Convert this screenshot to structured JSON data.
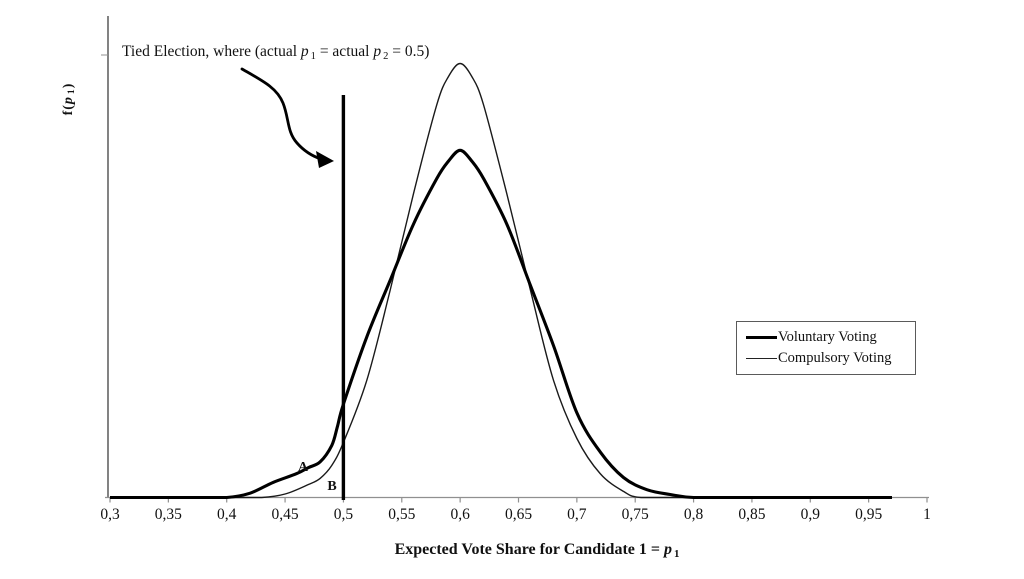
{
  "chart_data": {
    "type": "line",
    "title": "",
    "xlabel_parts": {
      "main": "Expected Vote Share for Candidate 1 = ",
      "p": "p",
      "sub": "1"
    },
    "ylabel_parts": {
      "f": "f(",
      "p": "p",
      "sub": "1",
      "close": ")"
    },
    "x_axis": {
      "min": 0.3,
      "max": 1.0,
      "decimal_separator": ",",
      "ticks": [
        {
          "label": "0,3",
          "value": 0.3
        },
        {
          "label": "0,35",
          "value": 0.35
        },
        {
          "label": "0,4",
          "value": 0.4
        },
        {
          "label": "0,45",
          "value": 0.45
        },
        {
          "label": "0,5",
          "value": 0.5
        },
        {
          "label": "0,55",
          "value": 0.55
        },
        {
          "label": "0,6",
          "value": 0.6
        },
        {
          "label": "0,65",
          "value": 0.65
        },
        {
          "label": "0,7",
          "value": 0.7
        },
        {
          "label": "0,75",
          "value": 0.75
        },
        {
          "label": "0,8",
          "value": 0.8
        },
        {
          "label": "0,85",
          "value": 0.85
        },
        {
          "label": "0,9",
          "value": 0.9
        },
        {
          "label": "0,95",
          "value": 0.95
        },
        {
          "label": "1",
          "value": 1.0
        }
      ]
    },
    "y_axis": {
      "scale_visible": false,
      "range_relative": [
        0,
        1
      ]
    },
    "series": [
      {
        "name": "Voluntary Voting",
        "line": "thick",
        "peak": {
          "x": 0.6,
          "height": 0.8
        },
        "points": [
          [
            0.3,
            0
          ],
          [
            0.34,
            0
          ],
          [
            0.37,
            0
          ],
          [
            0.4,
            0
          ],
          [
            0.42,
            0.01
          ],
          [
            0.44,
            0.035
          ],
          [
            0.46,
            0.055
          ],
          [
            0.47,
            0.069
          ],
          [
            0.48,
            0.082
          ],
          [
            0.49,
            0.12
          ],
          [
            0.495,
            0.165
          ],
          [
            0.5,
            0.215
          ],
          [
            0.52,
            0.37
          ],
          [
            0.54,
            0.5
          ],
          [
            0.56,
            0.63
          ],
          [
            0.58,
            0.735
          ],
          [
            0.59,
            0.775
          ],
          [
            0.6,
            0.8
          ],
          [
            0.61,
            0.775
          ],
          [
            0.62,
            0.735
          ],
          [
            0.64,
            0.63
          ],
          [
            0.66,
            0.49
          ],
          [
            0.68,
            0.35
          ],
          [
            0.7,
            0.195
          ],
          [
            0.72,
            0.105
          ],
          [
            0.74,
            0.046
          ],
          [
            0.76,
            0.018
          ],
          [
            0.78,
            0.007
          ],
          [
            0.8,
            0
          ],
          [
            0.84,
            0
          ],
          [
            0.88,
            0
          ],
          [
            0.93,
            0
          ],
          [
            0.97,
            0
          ]
        ]
      },
      {
        "name": "Compulsory Voting",
        "line": "thin",
        "peak": {
          "x": 0.6,
          "height": 1.0
        },
        "points": [
          [
            0.3,
            0
          ],
          [
            0.35,
            0
          ],
          [
            0.4,
            0
          ],
          [
            0.43,
            0
          ],
          [
            0.45,
            0.008
          ],
          [
            0.47,
            0.03
          ],
          [
            0.48,
            0.044
          ],
          [
            0.49,
            0.074
          ],
          [
            0.5,
            0.127
          ],
          [
            0.52,
            0.27
          ],
          [
            0.54,
            0.477
          ],
          [
            0.56,
            0.7
          ],
          [
            0.58,
            0.905
          ],
          [
            0.59,
            0.97
          ],
          [
            0.6,
            1.0
          ],
          [
            0.61,
            0.97
          ],
          [
            0.62,
            0.905
          ],
          [
            0.64,
            0.7
          ],
          [
            0.66,
            0.48
          ],
          [
            0.68,
            0.27
          ],
          [
            0.7,
            0.136
          ],
          [
            0.72,
            0.055
          ],
          [
            0.74,
            0.014
          ],
          [
            0.755,
            0
          ],
          [
            0.8,
            0
          ],
          [
            0.85,
            0
          ],
          [
            0.9,
            0
          ],
          [
            0.97,
            0
          ]
        ]
      }
    ],
    "annotations": {
      "tied_line": {
        "x": 0.5,
        "label_parts": {
          "part1": "Tied Election, where (actual ",
          "p1": "p",
          "sub1": "1",
          "mid": " = actual ",
          "p2": "p",
          "sub2": "2",
          "end": " = 0.5)"
        }
      },
      "region_labels": [
        {
          "text": "A"
        },
        {
          "text": "B"
        }
      ]
    },
    "legend": {
      "position": "right-middle",
      "border": true
    }
  },
  "colors": {
    "curve": "#000000",
    "axis": "#909090",
    "y_axis": "#404040",
    "tied_line": "#000000",
    "text": "#111111",
    "background": "#ffffff"
  }
}
